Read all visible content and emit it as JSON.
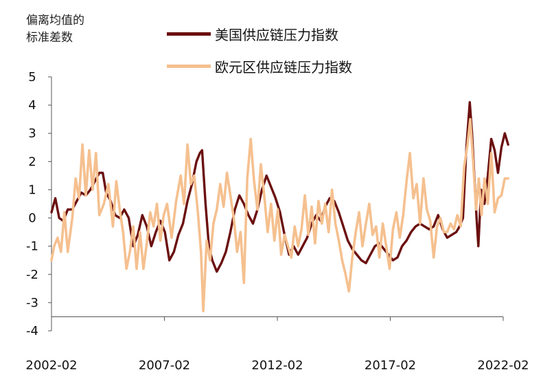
{
  "chart_data": {
    "type": "line",
    "ylabel": "偏离均值的\n标准差数",
    "xlabel": "",
    "ylim": [
      -4,
      5
    ],
    "yticks": [
      "5",
      "4",
      "3",
      "2",
      "1",
      "0",
      "-1",
      "-2",
      "-3",
      "-4"
    ],
    "xlim": [
      2002.08,
      2022.08
    ],
    "xticks": [
      {
        "label": "2002-02",
        "value": 2002.08
      },
      {
        "label": "2007-02",
        "value": 2007.08
      },
      {
        "label": "2012-02",
        "value": 2012.08
      },
      {
        "label": "2017-02",
        "value": 2017.08
      },
      {
        "label": "2022-02",
        "value": 2022.08
      }
    ],
    "legend_position": "top",
    "grid": false,
    "series": [
      {
        "name": "美国供应链压力指数",
        "color": "#6b0f0f",
        "points": [
          [
            2002.08,
            0.2
          ],
          [
            2002.25,
            0.7
          ],
          [
            2002.42,
            0.0
          ],
          [
            2002.6,
            -0.1
          ],
          [
            2002.8,
            0.3
          ],
          [
            2003.0,
            0.3
          ],
          [
            2003.2,
            0.6
          ],
          [
            2003.4,
            0.9
          ],
          [
            2003.6,
            0.8
          ],
          [
            2003.8,
            1.0
          ],
          [
            2004.0,
            1.3
          ],
          [
            2004.2,
            1.6
          ],
          [
            2004.35,
            1.6
          ],
          [
            2004.5,
            0.9
          ],
          [
            2004.7,
            0.6
          ],
          [
            2004.9,
            0.1
          ],
          [
            2005.1,
            0.0
          ],
          [
            2005.3,
            0.3
          ],
          [
            2005.5,
            0.0
          ],
          [
            2005.7,
            -1.0
          ],
          [
            2005.9,
            -0.6
          ],
          [
            2006.1,
            0.1
          ],
          [
            2006.3,
            -0.3
          ],
          [
            2006.5,
            -1.0
          ],
          [
            2006.7,
            -0.5
          ],
          [
            2006.9,
            -0.1
          ],
          [
            2007.1,
            -0.5
          ],
          [
            2007.3,
            -1.5
          ],
          [
            2007.5,
            -1.2
          ],
          [
            2007.7,
            -0.6
          ],
          [
            2007.9,
            -0.2
          ],
          [
            2008.1,
            0.6
          ],
          [
            2008.3,
            1.2
          ],
          [
            2008.5,
            2.0
          ],
          [
            2008.65,
            2.3
          ],
          [
            2008.75,
            2.4
          ],
          [
            2008.9,
            0.5
          ],
          [
            2009.05,
            -1.0
          ],
          [
            2009.2,
            -1.5
          ],
          [
            2009.4,
            -1.9
          ],
          [
            2009.6,
            -1.6
          ],
          [
            2009.8,
            -1.2
          ],
          [
            2010.0,
            -0.5
          ],
          [
            2010.2,
            0.3
          ],
          [
            2010.4,
            0.8
          ],
          [
            2010.6,
            0.5
          ],
          [
            2010.8,
            0.1
          ],
          [
            2011.0,
            -0.2
          ],
          [
            2011.2,
            0.3
          ],
          [
            2011.4,
            1.0
          ],
          [
            2011.6,
            1.5
          ],
          [
            2011.8,
            1.1
          ],
          [
            2012.0,
            0.7
          ],
          [
            2012.2,
            0.2
          ],
          [
            2012.4,
            -0.6
          ],
          [
            2012.6,
            -1.3
          ],
          [
            2012.8,
            -1.0
          ],
          [
            2013.0,
            -1.3
          ],
          [
            2013.2,
            -1.0
          ],
          [
            2013.4,
            -0.7
          ],
          [
            2013.6,
            -0.2
          ],
          [
            2013.8,
            0.1
          ],
          [
            2014.0,
            -0.1
          ],
          [
            2014.2,
            0.4
          ],
          [
            2014.4,
            0.7
          ],
          [
            2014.6,
            0.6
          ],
          [
            2014.8,
            0.2
          ],
          [
            2015.0,
            -0.3
          ],
          [
            2015.2,
            -0.8
          ],
          [
            2015.4,
            -1.1
          ],
          [
            2015.6,
            -1.3
          ],
          [
            2015.8,
            -1.5
          ],
          [
            2016.0,
            -1.6
          ],
          [
            2016.2,
            -1.3
          ],
          [
            2016.4,
            -1.0
          ],
          [
            2016.6,
            -0.9
          ],
          [
            2016.8,
            -1.1
          ],
          [
            2017.0,
            -1.3
          ],
          [
            2017.2,
            -1.5
          ],
          [
            2017.4,
            -1.4
          ],
          [
            2017.6,
            -1.0
          ],
          [
            2017.8,
            -0.8
          ],
          [
            2018.0,
            -0.5
          ],
          [
            2018.2,
            -0.3
          ],
          [
            2018.4,
            -0.2
          ],
          [
            2018.6,
            -0.3
          ],
          [
            2018.8,
            -0.4
          ],
          [
            2019.0,
            -0.3
          ],
          [
            2019.2,
            0.1
          ],
          [
            2019.4,
            -0.4
          ],
          [
            2019.6,
            -0.7
          ],
          [
            2019.8,
            -0.6
          ],
          [
            2020.0,
            -0.5
          ],
          [
            2020.15,
            -0.3
          ],
          [
            2020.3,
            0.0
          ],
          [
            2020.45,
            2.5
          ],
          [
            2020.6,
            4.1
          ],
          [
            2020.7,
            3.0
          ],
          [
            2020.8,
            1.5
          ],
          [
            2020.9,
            0.0
          ],
          [
            2020.98,
            -1.0
          ],
          [
            2021.1,
            1.0
          ],
          [
            2021.25,
            0.5
          ],
          [
            2021.4,
            1.5
          ],
          [
            2021.55,
            2.8
          ],
          [
            2021.7,
            2.4
          ],
          [
            2021.85,
            1.6
          ],
          [
            2022.0,
            2.5
          ],
          [
            2022.15,
            3.0
          ],
          [
            2022.3,
            2.6
          ]
        ]
      },
      {
        "name": "欧元区供应链压力指数",
        "color": "#f5c08f",
        "points": [
          [
            2002.08,
            -1.5
          ],
          [
            2002.2,
            -1.0
          ],
          [
            2002.35,
            -0.7
          ],
          [
            2002.5,
            -1.2
          ],
          [
            2002.65,
            0.2
          ],
          [
            2002.8,
            -1.2
          ],
          [
            2003.0,
            0.0
          ],
          [
            2003.15,
            1.4
          ],
          [
            2003.3,
            0.7
          ],
          [
            2003.45,
            2.6
          ],
          [
            2003.6,
            0.8
          ],
          [
            2003.75,
            2.4
          ],
          [
            2003.9,
            1.0
          ],
          [
            2004.05,
            2.3
          ],
          [
            2004.2,
            0.1
          ],
          [
            2004.4,
            0.5
          ],
          [
            2004.6,
            1.2
          ],
          [
            2004.8,
            -0.3
          ],
          [
            2004.95,
            1.3
          ],
          [
            2005.1,
            0.3
          ],
          [
            2005.25,
            -0.5
          ],
          [
            2005.4,
            -1.8
          ],
          [
            2005.55,
            -1.2
          ],
          [
            2005.7,
            -0.3
          ],
          [
            2005.85,
            -1.8
          ],
          [
            2006.0,
            -0.5
          ],
          [
            2006.15,
            -1.8
          ],
          [
            2006.3,
            -0.9
          ],
          [
            2006.45,
            0.2
          ],
          [
            2006.6,
            -0.3
          ],
          [
            2006.75,
            0.5
          ],
          [
            2006.9,
            -0.8
          ],
          [
            2007.05,
            0.1
          ],
          [
            2007.2,
            0.5
          ],
          [
            2007.4,
            -0.7
          ],
          [
            2007.6,
            0.6
          ],
          [
            2007.8,
            1.5
          ],
          [
            2007.95,
            0.5
          ],
          [
            2008.1,
            2.6
          ],
          [
            2008.25,
            1.2
          ],
          [
            2008.4,
            1.5
          ],
          [
            2008.55,
            0.3
          ],
          [
            2008.7,
            -1.2
          ],
          [
            2008.8,
            -3.3
          ],
          [
            2008.95,
            -0.8
          ],
          [
            2009.1,
            -1.5
          ],
          [
            2009.25,
            -0.2
          ],
          [
            2009.4,
            0.3
          ],
          [
            2009.55,
            1.2
          ],
          [
            2009.7,
            0.4
          ],
          [
            2009.85,
            1.6
          ],
          [
            2010.0,
            0.8
          ],
          [
            2010.15,
            0.0
          ],
          [
            2010.3,
            -1.2
          ],
          [
            2010.45,
            -0.5
          ],
          [
            2010.6,
            -2.3
          ],
          [
            2010.75,
            1.4
          ],
          [
            2010.9,
            2.8
          ],
          [
            2011.05,
            1.3
          ],
          [
            2011.2,
            0.3
          ],
          [
            2011.35,
            1.9
          ],
          [
            2011.5,
            0.8
          ],
          [
            2011.65,
            -0.5
          ],
          [
            2011.8,
            0.5
          ],
          [
            2011.95,
            -0.8
          ],
          [
            2012.1,
            0.3
          ],
          [
            2012.25,
            -1.3
          ],
          [
            2012.4,
            -0.6
          ],
          [
            2012.55,
            -1.0
          ],
          [
            2012.7,
            -1.4
          ],
          [
            2012.85,
            -0.3
          ],
          [
            2013.0,
            -1.0
          ],
          [
            2013.15,
            -0.4
          ],
          [
            2013.3,
            0.8
          ],
          [
            2013.45,
            -0.6
          ],
          [
            2013.6,
            0.4
          ],
          [
            2013.75,
            -0.9
          ],
          [
            2013.9,
            0.6
          ],
          [
            2014.05,
            -0.2
          ],
          [
            2014.2,
            0.5
          ],
          [
            2014.35,
            -0.5
          ],
          [
            2014.5,
            1.0
          ],
          [
            2014.65,
            -0.2
          ],
          [
            2014.8,
            -0.8
          ],
          [
            2014.95,
            -1.5
          ],
          [
            2015.1,
            -2.0
          ],
          [
            2015.25,
            -2.6
          ],
          [
            2015.4,
            -1.4
          ],
          [
            2015.55,
            -0.5
          ],
          [
            2015.7,
            0.2
          ],
          [
            2015.85,
            -1.0
          ],
          [
            2016.0,
            -0.2
          ],
          [
            2016.15,
            0.5
          ],
          [
            2016.3,
            -0.6
          ],
          [
            2016.45,
            -0.3
          ],
          [
            2016.6,
            -1.4
          ],
          [
            2016.75,
            -0.2
          ],
          [
            2016.9,
            -1.0
          ],
          [
            2017.05,
            -1.8
          ],
          [
            2017.2,
            -0.4
          ],
          [
            2017.35,
            0.2
          ],
          [
            2017.5,
            -0.7
          ],
          [
            2017.65,
            0.1
          ],
          [
            2017.8,
            1.3
          ],
          [
            2017.95,
            2.3
          ],
          [
            2018.1,
            0.7
          ],
          [
            2018.25,
            1.2
          ],
          [
            2018.4,
            -0.2
          ],
          [
            2018.55,
            1.4
          ],
          [
            2018.7,
            0.3
          ],
          [
            2018.85,
            -0.1
          ],
          [
            2019.0,
            -1.4
          ],
          [
            2019.15,
            -0.3
          ],
          [
            2019.3,
            0.0
          ],
          [
            2019.45,
            -0.5
          ],
          [
            2019.6,
            -0.5
          ],
          [
            2019.75,
            -0.2
          ],
          [
            2019.9,
            -0.4
          ],
          [
            2020.05,
            0.1
          ],
          [
            2020.2,
            -0.3
          ],
          [
            2020.35,
            1.8
          ],
          [
            2020.5,
            2.6
          ],
          [
            2020.62,
            3.5
          ],
          [
            2020.75,
            2.0
          ],
          [
            2020.88,
            0.3
          ],
          [
            2021.0,
            1.4
          ],
          [
            2021.12,
            0.1
          ],
          [
            2021.25,
            1.4
          ],
          [
            2021.4,
            0.5
          ],
          [
            2021.55,
            2.3
          ],
          [
            2021.7,
            0.2
          ],
          [
            2021.85,
            0.7
          ],
          [
            2022.0,
            0.8
          ],
          [
            2022.15,
            1.4
          ],
          [
            2022.3,
            1.4
          ]
        ]
      }
    ]
  }
}
